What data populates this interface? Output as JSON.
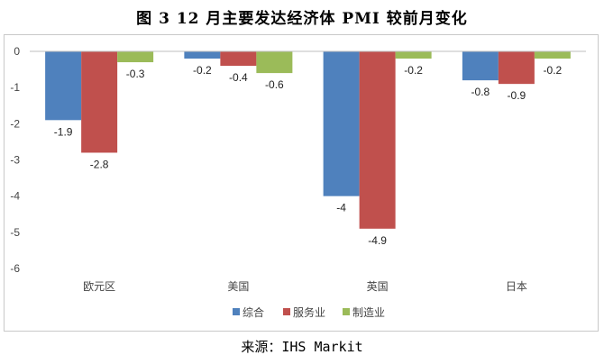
{
  "title": "图 3 12 月主要发达经济体 PMI 较前月变化",
  "source": {
    "label": "来源：",
    "value": "IHS Markit"
  },
  "chart_data": {
    "type": "bar",
    "categories": [
      "欧元区",
      "美国",
      "英国",
      "日本"
    ],
    "series": [
      {
        "name": "综合",
        "color": "#4f81bd",
        "values": [
          -1.9,
          -0.2,
          -4,
          -0.8
        ]
      },
      {
        "name": "服务业",
        "color": "#c0504d",
        "values": [
          -2.8,
          -0.4,
          -4.9,
          -0.9
        ]
      },
      {
        "name": "制造业",
        "color": "#9bbb59",
        "values": [
          -0.3,
          -0.6,
          -0.2,
          -0.2
        ]
      }
    ],
    "ylim": [
      -6,
      0
    ],
    "yticks": [
      0,
      -1,
      -2,
      -3,
      -4,
      -5,
      -6
    ],
    "grid": false,
    "legend": "bottom"
  }
}
